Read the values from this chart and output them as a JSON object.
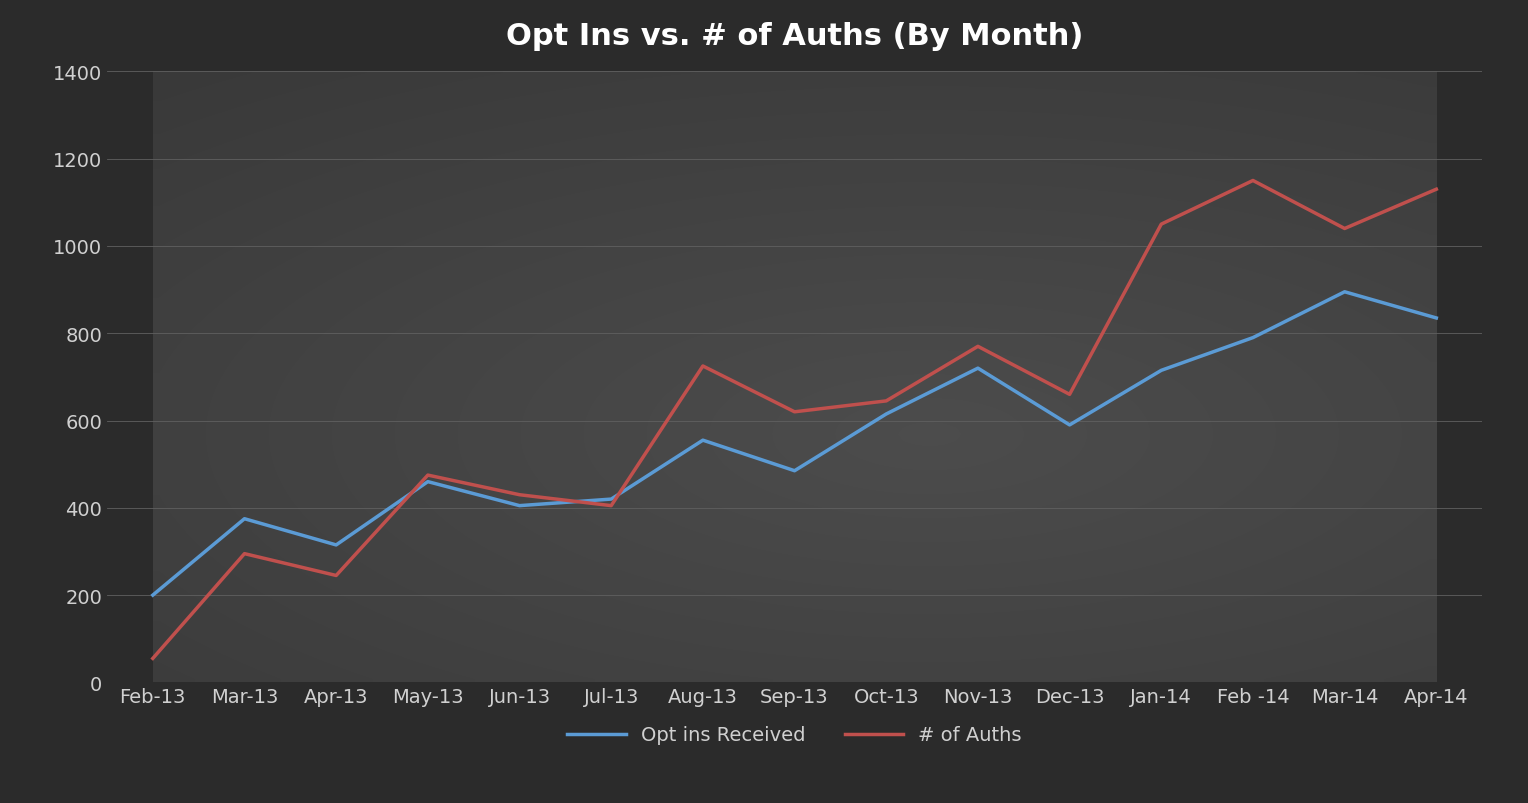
{
  "title": "Opt Ins vs. # of Auths (By Month)",
  "x_labels": [
    "Feb-13",
    "Mar-13",
    "Apr-13",
    "May-13",
    "Jun-13",
    "Jul-13",
    "Aug-13",
    "Sep-13",
    "Oct-13",
    "Nov-13",
    "Dec-13",
    "Jan-14",
    "Feb -14",
    "Mar-14",
    "Apr-14"
  ],
  "opt_ins": [
    200,
    375,
    315,
    460,
    405,
    420,
    555,
    485,
    615,
    720,
    590,
    715,
    790,
    895,
    835
  ],
  "auths": [
    55,
    295,
    245,
    475,
    430,
    405,
    725,
    620,
    645,
    770,
    660,
    1050,
    1150,
    1040,
    1130
  ],
  "opt_ins_color": "#5b9bd5",
  "auths_color": "#c0504d",
  "bg_dark": "#2b2b2b",
  "bg_mid": "#3d3d3d",
  "bg_light": "#484848",
  "grid_color": "#606060",
  "text_color": "#d0d0d0",
  "title_fontsize": 22,
  "tick_fontsize": 14,
  "legend_fontsize": 14,
  "ylim": [
    0,
    1400
  ],
  "yticks": [
    0,
    200,
    400,
    600,
    800,
    1000,
    1200,
    1400
  ],
  "line_width": 2.5,
  "legend_labels": [
    "Opt ins Received",
    "# of Auths"
  ]
}
